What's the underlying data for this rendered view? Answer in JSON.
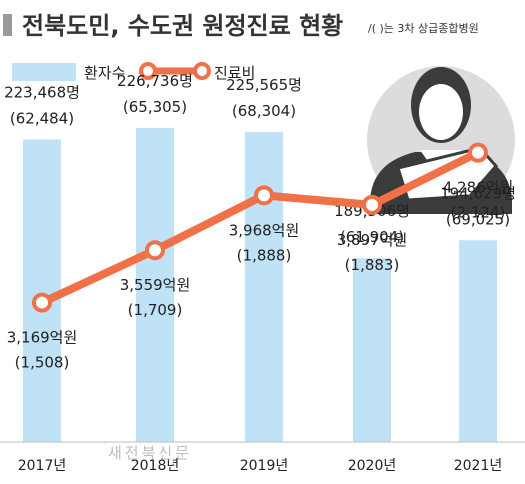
{
  "chart_data": {
    "type": "bar",
    "title": "전북도민, 수도권 원정진료 현황",
    "note": "/( )는 3차 상급종합병원",
    "categories": [
      "2017년",
      "2018년",
      "2019년",
      "2020년",
      "2021년"
    ],
    "series": [
      {
        "name": "환자수",
        "type": "bar",
        "color": "#bfe2f6",
        "values": [
          223468,
          226736,
          225565,
          189506,
          194629
        ],
        "labels": [
          "223,468명",
          "226,736명",
          "225,565명",
          "189,506명",
          "194,629명"
        ],
        "sublabels": [
          "(62,484)",
          "(65,305)",
          "(68,304)",
          "(61,904)",
          "(69,025)"
        ]
      },
      {
        "name": "진료비",
        "type": "line",
        "color": "#f07048",
        "values": [
          3169,
          3559,
          3968,
          3897,
          4286
        ],
        "labels": [
          "3,169억원",
          "3,559억원",
          "3,968억원",
          "3,897억원",
          "4,286억원"
        ],
        "sublabels": [
          "(1,508)",
          "(1,709)",
          "(1,888)",
          "(1,883)",
          "(2,124)"
        ]
      }
    ],
    "grid": false,
    "legend": "top-left"
  },
  "watermark": "새전북신문",
  "icon": "patient-arm-sling-icon"
}
